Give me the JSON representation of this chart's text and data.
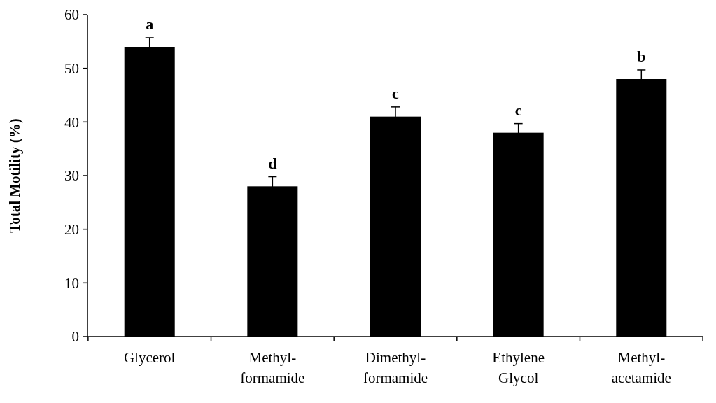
{
  "chart_data": {
    "type": "bar",
    "ylabel": "Total Motility (%)",
    "categories": [
      "Glycerol",
      "Methyl-\nformamide",
      "Dimethyl-\nformamide",
      "Ethylene\nGlycol",
      "Methyl-\nacetamide"
    ],
    "values": [
      54,
      28,
      41,
      38,
      48
    ],
    "errors": [
      1.7,
      1.8,
      1.8,
      1.7,
      1.7
    ],
    "color": "#000000",
    "ylim": [
      0,
      60
    ],
    "yticks": [
      0,
      10,
      20,
      30,
      40,
      50,
      60
    ],
    "grid": false,
    "annotations": [
      "a",
      "d",
      "c",
      "c",
      "b"
    ]
  }
}
